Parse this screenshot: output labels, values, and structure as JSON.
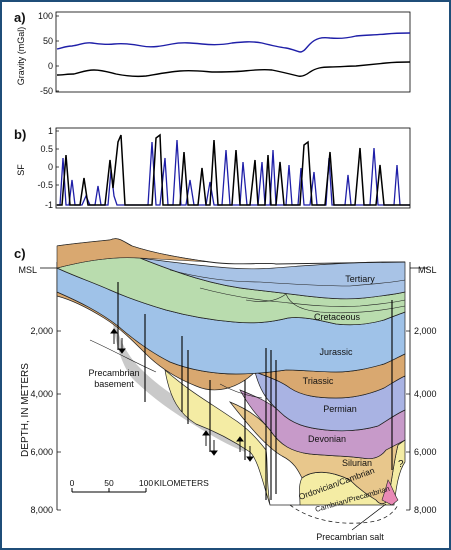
{
  "figure": {
    "frame_color": "#1f4e79",
    "panel_a": {
      "letter": "a)",
      "ylabel": "Gravity (mGal)",
      "yticks": [
        "100",
        "50",
        "0",
        "-50"
      ],
      "series_colors": {
        "upper": "#1f1fa8",
        "lower": "#000000"
      }
    },
    "panel_b": {
      "letter": "b)",
      "ylabel": "SF",
      "yticks": [
        "1",
        "0.5",
        "0",
        "-0.5",
        "-1"
      ]
    },
    "panel_c": {
      "letter": "c)",
      "ylabel": "DEPTH, IN METERS",
      "msl_left": "MSL",
      "msl_right": "MSL",
      "depth_ticks_left": [
        "2,000",
        "4,000",
        "6,000",
        "8,000"
      ],
      "depth_ticks_right": [
        "2,000",
        "4,000",
        "6,000",
        "8,000"
      ],
      "scale": {
        "zero": "0",
        "fifty": "50",
        "hundred": "100",
        "unit": "KILOMETERS"
      },
      "labels": {
        "tertiary": "Tertiary",
        "cretaceous": "Cretaceous",
        "jurassic": "Jurassic",
        "triassic": "Triassic",
        "permian": "Permian",
        "devonian": "Devonian",
        "silurian": "Silurian",
        "ordovician": "Ordovician/Cambrian",
        "cambrian": "Cambrian/Precambrian",
        "basement_line1": "Precambrian",
        "basement_line2": "basement",
        "salt": "Precambrian salt",
        "question": "?"
      },
      "layer_colors": {
        "tertiary": "#a8c3e6",
        "cretaceous": "#b9dcae",
        "jurassic": "#9fc2e8",
        "triassic": "#d9a870",
        "permian": "#a9b3e3",
        "devonian": "#c79ac9",
        "silurian": "#e8c78c",
        "ordovician": "#f4eca4",
        "basement": "#c9c9c9",
        "salt": "#e98ab6"
      }
    }
  }
}
